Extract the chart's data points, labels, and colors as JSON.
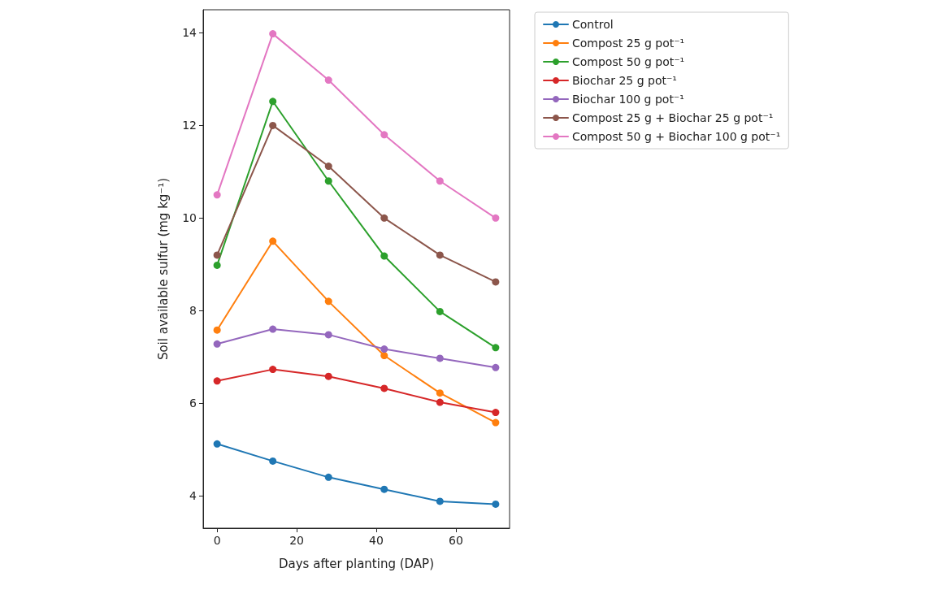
{
  "chart_data": {
    "type": "line",
    "xlabel": "Days after planting (DAP)",
    "ylabel": "Soil available sulfur (mg kg⁻¹)",
    "x": [
      0,
      14,
      28,
      42,
      56,
      70
    ],
    "series": [
      {
        "name": "Control",
        "color": "#1f77b4",
        "values": [
          5.12,
          4.75,
          4.4,
          4.14,
          3.88,
          3.82
        ]
      },
      {
        "name": "Compost 25 g pot⁻¹",
        "color": "#ff7f0e",
        "values": [
          7.58,
          9.5,
          8.2,
          7.03,
          6.22,
          5.58
        ]
      },
      {
        "name": "Compost 50 g pot⁻¹",
        "color": "#2ca02c",
        "values": [
          8.98,
          12.52,
          10.8,
          9.18,
          7.98,
          7.2
        ]
      },
      {
        "name": "Biochar 25 g pot⁻¹",
        "color": "#d62728",
        "values": [
          6.48,
          6.73,
          6.58,
          6.32,
          6.02,
          5.8
        ]
      },
      {
        "name": "Biochar 100 g pot⁻¹",
        "color": "#9467bd",
        "values": [
          7.28,
          7.6,
          7.48,
          7.17,
          6.97,
          6.77
        ]
      },
      {
        "name": "Compost 25 g + Biochar 25 g pot⁻¹",
        "color": "#8c564b",
        "values": [
          9.2,
          12.0,
          11.12,
          10.0,
          9.2,
          8.62
        ]
      },
      {
        "name": "Compost 50 g + Biochar 100 g pot⁻¹",
        "color": "#e377c2",
        "values": [
          10.5,
          13.98,
          12.98,
          11.8,
          10.8,
          10.0
        ]
      }
    ],
    "xlim": [
      -3.5,
      73.5
    ],
    "xticks": [
      0,
      20,
      40,
      60
    ],
    "ylim": [
      3.3,
      14.5
    ],
    "yticks": [
      4,
      6,
      8,
      10,
      12,
      14
    ],
    "grid": false,
    "legend": "right",
    "marker": "circle",
    "line_style": "solid"
  }
}
